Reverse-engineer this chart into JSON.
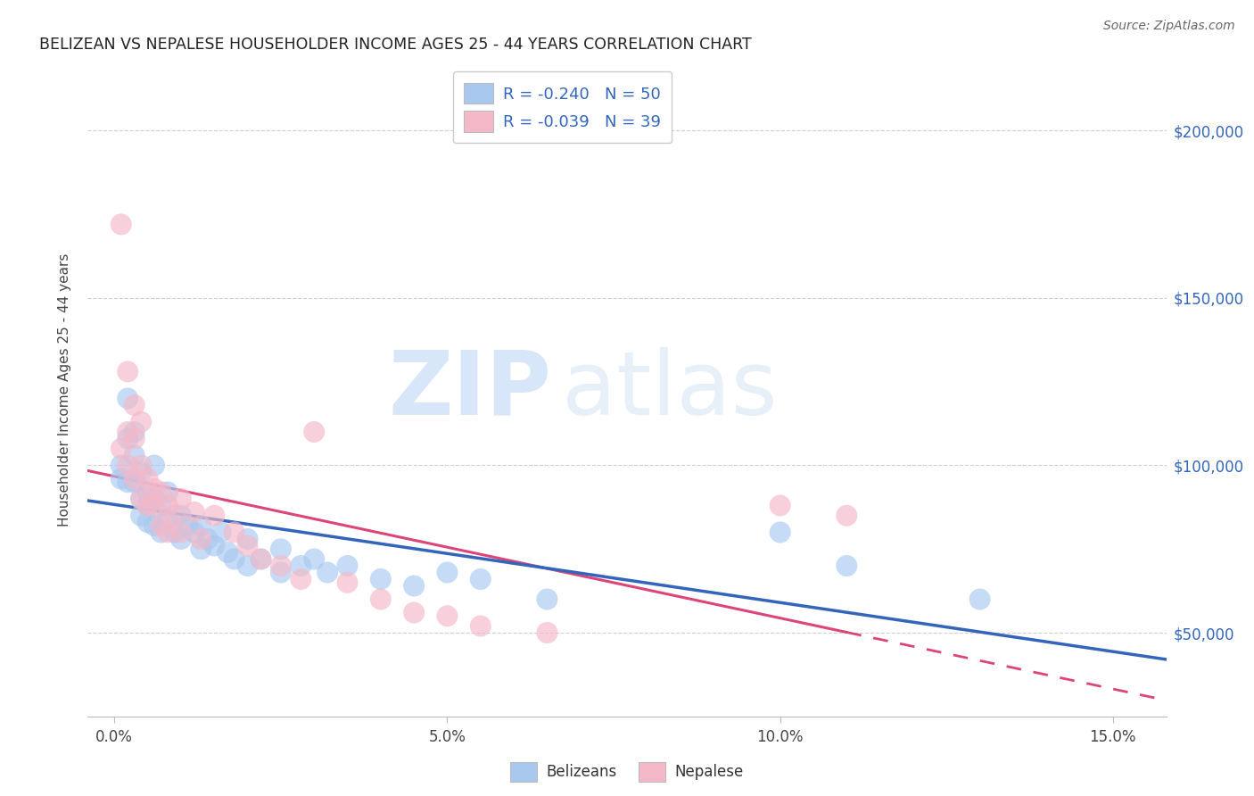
{
  "title": "BELIZEAN VS NEPALESE HOUSEHOLDER INCOME AGES 25 - 44 YEARS CORRELATION CHART",
  "source": "Source: ZipAtlas.com",
  "ylabel": "Householder Income Ages 25 - 44 years",
  "xlabel_ticks": [
    "0.0%",
    "5.0%",
    "10.0%",
    "15.0%"
  ],
  "xlabel_tick_vals": [
    0.0,
    0.05,
    0.1,
    0.15
  ],
  "ylabel_ticks": [
    "$50,000",
    "$100,000",
    "$150,000",
    "$200,000"
  ],
  "ylabel_tick_vals": [
    50000,
    100000,
    150000,
    200000
  ],
  "xlim": [
    -0.004,
    0.158
  ],
  "ylim": [
    25000,
    220000
  ],
  "legend_r_belizean": "R = -0.240",
  "legend_n_belizean": "N = 50",
  "legend_r_nepalese": "R = -0.039",
  "legend_n_nepalese": "N = 39",
  "belizean_color": "#A8C8F0",
  "nepalese_color": "#F5B8C8",
  "belizean_line_color": "#3366BB",
  "nepalese_line_color": "#DD4477",
  "legend_text_color": "#3366BB",
  "belizean_scatter": [
    [
      0.001,
      100000
    ],
    [
      0.001,
      96000
    ],
    [
      0.002,
      120000
    ],
    [
      0.002,
      108000
    ],
    [
      0.002,
      95000
    ],
    [
      0.003,
      110000
    ],
    [
      0.003,
      103000
    ],
    [
      0.003,
      95000
    ],
    [
      0.004,
      98000
    ],
    [
      0.004,
      90000
    ],
    [
      0.004,
      85000
    ],
    [
      0.005,
      92000
    ],
    [
      0.005,
      88000
    ],
    [
      0.005,
      83000
    ],
    [
      0.006,
      100000
    ],
    [
      0.006,
      90000
    ],
    [
      0.006,
      82000
    ],
    [
      0.007,
      88000
    ],
    [
      0.007,
      80000
    ],
    [
      0.008,
      92000
    ],
    [
      0.008,
      84000
    ],
    [
      0.009,
      80000
    ],
    [
      0.01,
      85000
    ],
    [
      0.01,
      78000
    ],
    [
      0.011,
      82000
    ],
    [
      0.012,
      80000
    ],
    [
      0.013,
      82000
    ],
    [
      0.013,
      75000
    ],
    [
      0.014,
      78000
    ],
    [
      0.015,
      76000
    ],
    [
      0.016,
      80000
    ],
    [
      0.017,
      74000
    ],
    [
      0.018,
      72000
    ],
    [
      0.02,
      78000
    ],
    [
      0.02,
      70000
    ],
    [
      0.022,
      72000
    ],
    [
      0.025,
      75000
    ],
    [
      0.025,
      68000
    ],
    [
      0.028,
      70000
    ],
    [
      0.03,
      72000
    ],
    [
      0.032,
      68000
    ],
    [
      0.035,
      70000
    ],
    [
      0.04,
      66000
    ],
    [
      0.045,
      64000
    ],
    [
      0.05,
      68000
    ],
    [
      0.055,
      66000
    ],
    [
      0.065,
      60000
    ],
    [
      0.1,
      80000
    ],
    [
      0.11,
      70000
    ],
    [
      0.13,
      60000
    ]
  ],
  "nepalese_scatter": [
    [
      0.001,
      172000
    ],
    [
      0.001,
      105000
    ],
    [
      0.002,
      128000
    ],
    [
      0.002,
      110000
    ],
    [
      0.002,
      100000
    ],
    [
      0.003,
      118000
    ],
    [
      0.003,
      108000
    ],
    [
      0.003,
      96000
    ],
    [
      0.004,
      113000
    ],
    [
      0.004,
      100000
    ],
    [
      0.004,
      90000
    ],
    [
      0.005,
      96000
    ],
    [
      0.005,
      88000
    ],
    [
      0.006,
      93000
    ],
    [
      0.006,
      88000
    ],
    [
      0.007,
      92000
    ],
    [
      0.007,
      82000
    ],
    [
      0.008,
      88000
    ],
    [
      0.008,
      80000
    ],
    [
      0.009,
      85000
    ],
    [
      0.01,
      90000
    ],
    [
      0.01,
      80000
    ],
    [
      0.012,
      86000
    ],
    [
      0.013,
      78000
    ],
    [
      0.015,
      85000
    ],
    [
      0.018,
      80000
    ],
    [
      0.02,
      76000
    ],
    [
      0.022,
      72000
    ],
    [
      0.025,
      70000
    ],
    [
      0.028,
      66000
    ],
    [
      0.03,
      110000
    ],
    [
      0.035,
      65000
    ],
    [
      0.04,
      60000
    ],
    [
      0.045,
      56000
    ],
    [
      0.05,
      55000
    ],
    [
      0.055,
      52000
    ],
    [
      0.065,
      50000
    ],
    [
      0.1,
      88000
    ],
    [
      0.11,
      85000
    ]
  ],
  "watermark_zip": "ZIP",
  "watermark_atlas": "atlas",
  "background_color": "#FFFFFF",
  "grid_color": "#CCCCCC"
}
